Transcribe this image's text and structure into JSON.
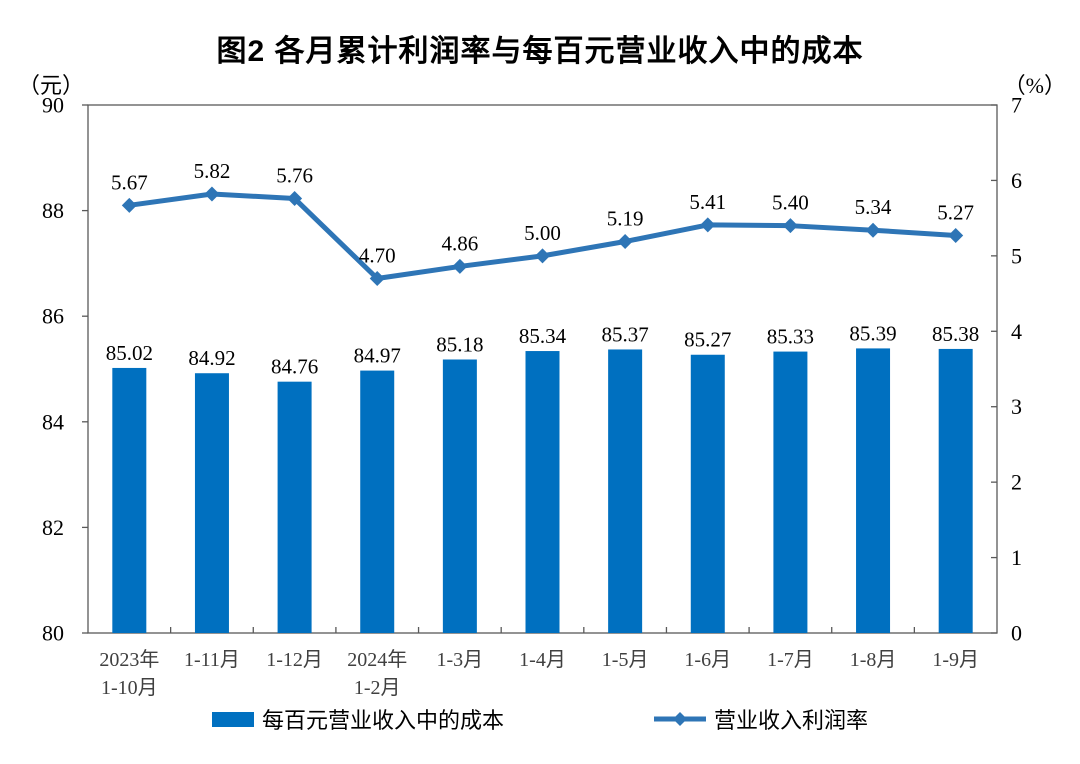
{
  "title": "图2 各月累计利润率与每百元营业收入中的成本",
  "left_axis_unit": "（元）",
  "right_axis_unit": "（%）",
  "legend": {
    "bar_label": "每百元营业收入中的成本",
    "line_label": "营业收入利润率"
  },
  "colors": {
    "bar": "#0070C0",
    "line": "#2E75B6",
    "marker": "#2E75B6",
    "axis": "#595959",
    "value_label": "#000000",
    "category_label": "#404040"
  },
  "chart_data": {
    "type": "bar",
    "subtype": "combo-bar-line-dual-axis",
    "title": "图2 各月累计利润率与每百元营业收入中的成本",
    "categories": [
      [
        "2023年",
        "1-10月"
      ],
      [
        "1-11月"
      ],
      [
        "1-12月"
      ],
      [
        "2024年",
        "1-2月"
      ],
      [
        "1-3月"
      ],
      [
        "1-4月"
      ],
      [
        "1-5月"
      ],
      [
        "1-6月"
      ],
      [
        "1-7月"
      ],
      [
        "1-8月"
      ],
      [
        "1-9月"
      ]
    ],
    "series": [
      {
        "name": "每百元营业收入中的成本",
        "type": "bar",
        "axis": "left",
        "values": [
          85.02,
          84.92,
          84.76,
          84.97,
          85.18,
          85.34,
          85.37,
          85.27,
          85.33,
          85.39,
          85.38
        ]
      },
      {
        "name": "营业收入利润率",
        "type": "line",
        "axis": "right",
        "values": [
          5.67,
          5.82,
          5.76,
          4.7,
          4.86,
          5.0,
          5.19,
          5.41,
          5.4,
          5.34,
          5.27
        ]
      }
    ],
    "left_axis": {
      "label": "（元）",
      "min": 80,
      "max": 90,
      "ticks": [
        90,
        88,
        86,
        84,
        82,
        80
      ]
    },
    "right_axis": {
      "label": "（%）",
      "min": 0,
      "max": 7,
      "ticks": [
        7,
        6,
        5,
        4,
        3,
        2,
        1,
        0
      ]
    },
    "grid": false,
    "legend_position": "bottom",
    "data_labels": true
  }
}
